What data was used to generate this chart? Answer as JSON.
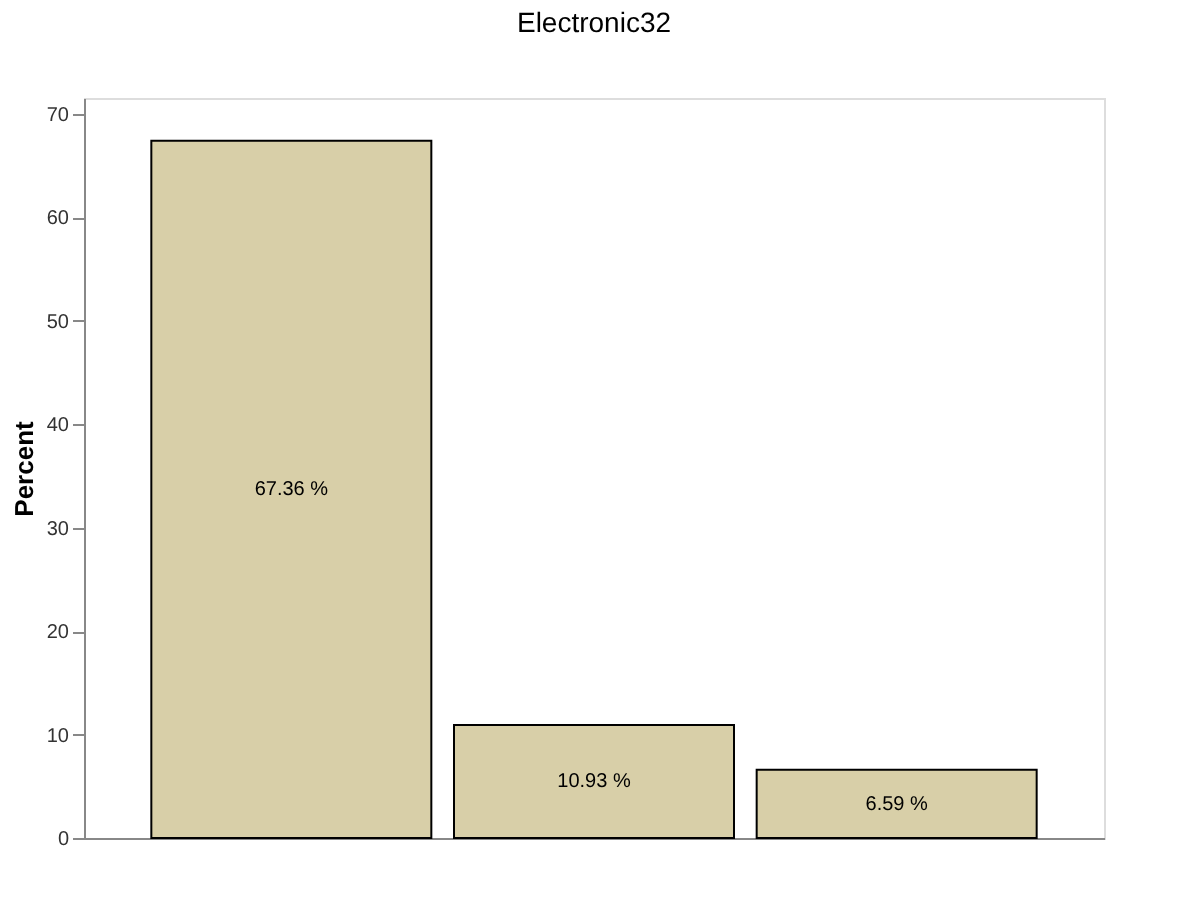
{
  "chart_data": {
    "type": "bar",
    "title": "Electronic32",
    "ylabel": "Percent",
    "categories": [
      null,
      null,
      null
    ],
    "values": [
      67.36,
      10.93,
      6.59
    ],
    "value_labels": [
      "67.36 %",
      "10.93 %",
      "6.59 %"
    ],
    "color": "#d8cfa8",
    "ylim": [
      0,
      71.5
    ],
    "yticks": [
      0,
      10,
      20,
      30,
      40,
      50,
      60,
      70
    ],
    "grid": false,
    "tick_labels": "y"
  }
}
